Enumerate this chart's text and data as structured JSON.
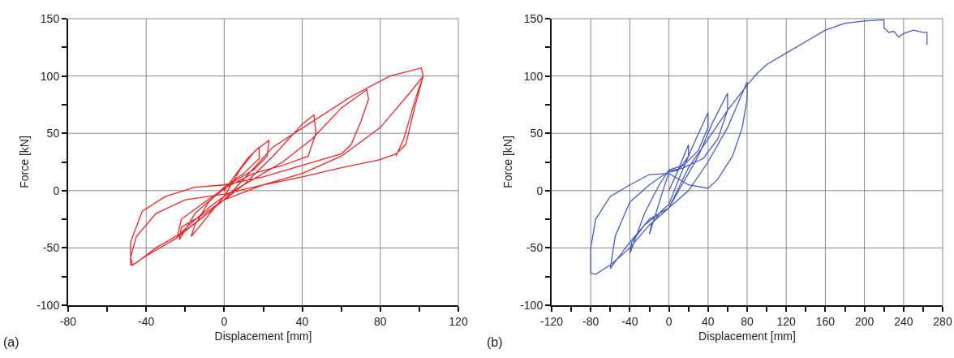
{
  "chart_data": [
    {
      "type": "line",
      "xlabel": "Displacement [mm]",
      "ylabel": "Force [kN]",
      "annotations": [
        "(a)"
      ],
      "grid": true,
      "marker": "none",
      "line_style": "solid",
      "xlim": [
        -80,
        120
      ],
      "xticks": [
        -80,
        {
          "value": -60,
          "label": null
        },
        -40,
        {
          "value": -20,
          "label": null
        },
        0,
        {
          "value": 20,
          "label": null
        },
        40,
        {
          "value": 60,
          "label": null
        },
        80,
        {
          "value": 100,
          "label": null
        },
        120
      ],
      "ylim": [
        -100,
        150
      ],
      "yticks": [
        -100,
        {
          "value": -75,
          "label": null
        },
        -50,
        {
          "value": -25,
          "label": null
        },
        0,
        {
          "value": 25,
          "label": null
        },
        50,
        {
          "value": 75,
          "label": null
        },
        100,
        {
          "value": 125,
          "label": null
        },
        150
      ],
      "series": [
        {
          "color": "#e8262b",
          "x": [
            0,
            5,
            12,
            18,
            18,
            10,
            0,
            -8,
            -15,
            -17,
            -12,
            -5,
            0,
            8,
            16,
            23,
            22,
            15,
            5,
            -5,
            -15,
            -23,
            -22,
            -12,
            0,
            10,
            25,
            40,
            46,
            47,
            43,
            30,
            15,
            0,
            -10,
            -22,
            -24,
            -18,
            -8,
            0,
            15,
            30,
            45,
            60,
            73,
            74,
            70,
            65,
            60,
            40,
            20,
            0,
            -15,
            -30,
            -42,
            -48,
            -48,
            -45,
            -35,
            -20,
            -5,
            0,
            10,
            25,
            45,
            65,
            85,
            101,
            102,
            98,
            93,
            88,
            80,
            60,
            40,
            20,
            0,
            -20,
            -35,
            -45,
            -48,
            -47,
            -40,
            -25,
            -10,
            0,
            20,
            40,
            60,
            80,
            95,
            102,
            98,
            92,
            88
          ],
          "values": [
            0,
            12,
            28,
            38,
            28,
            15,
            3,
            -10,
            -30,
            -40,
            -30,
            -15,
            -5,
            18,
            35,
            44,
            30,
            18,
            8,
            -5,
            -20,
            -43,
            -32,
            -22,
            -8,
            5,
            30,
            58,
            66,
            50,
            30,
            22,
            15,
            2,
            -10,
            -25,
            -40,
            -30,
            -15,
            -5,
            10,
            25,
            45,
            72,
            88,
            80,
            60,
            40,
            32,
            22,
            12,
            5,
            3,
            -5,
            -18,
            -45,
            -65,
            -63,
            -50,
            -35,
            -15,
            -8,
            10,
            38,
            60,
            82,
            100,
            107,
            100,
            75,
            40,
            32,
            27,
            20,
            12,
            5,
            -3,
            -8,
            -20,
            -40,
            -58,
            -65,
            -57,
            -42,
            -22,
            -8,
            5,
            15,
            30,
            55,
            85,
            100,
            80,
            45,
            30
          ]
        }
      ]
    },
    {
      "type": "line",
      "xlabel": "Displacement [mm]",
      "ylabel": "Force [kN]",
      "annotations": [
        "(b)"
      ],
      "grid": true,
      "marker": "none",
      "line_style": "solid",
      "xlim": [
        -120,
        280
      ],
      "xticks": [
        -120,
        {
          "value": -100,
          "label": null
        },
        -80,
        {
          "value": -60,
          "label": null
        },
        -40,
        {
          "value": -20,
          "label": null
        },
        0,
        {
          "value": 20,
          "label": null
        },
        40,
        {
          "value": 60,
          "label": null
        },
        80,
        {
          "value": 100,
          "label": null
        },
        120,
        {
          "value": 140,
          "label": null
        },
        160,
        {
          "value": 180,
          "label": null
        },
        200,
        {
          "value": 220,
          "label": null
        },
        240,
        {
          "value": 260,
          "label": null
        },
        280
      ],
      "ylim": [
        -100,
        150
      ],
      "yticks": [
        -100,
        {
          "value": -75,
          "label": null
        },
        -50,
        {
          "value": -25,
          "label": null
        },
        0,
        {
          "value": 25,
          "label": null
        },
        50,
        {
          "value": 75,
          "label": null
        },
        100,
        {
          "value": 125,
          "label": null
        },
        150
      ],
      "series": [
        {
          "color": "#4a5cbf",
          "x": [
            0,
            8,
            20,
            20,
            10,
            0,
            -8,
            -20,
            -18,
            -8,
            0,
            10,
            25,
            40,
            40,
            30,
            15,
            0,
            -10,
            -25,
            -40,
            -38,
            -25,
            -10,
            0,
            10,
            30,
            45,
            60,
            60,
            50,
            35,
            15,
            0,
            -20,
            -40,
            -55,
            -60,
            -55,
            -40,
            -20,
            0,
            20,
            40,
            60,
            80,
            80,
            75,
            65,
            50,
            40,
            20,
            0,
            -20,
            -40,
            -60,
            -75,
            -80,
            -80,
            -75,
            -60,
            -40,
            -20,
            0,
            20,
            40,
            60,
            80,
            90,
            100,
            120,
            140,
            160,
            180,
            200,
            220,
            220,
            225,
            230,
            235,
            240,
            250,
            260,
            264,
            264
          ],
          "values": [
            0,
            15,
            40,
            30,
            18,
            16,
            -5,
            -38,
            -30,
            -18,
            -12,
            10,
            40,
            68,
            55,
            35,
            22,
            18,
            5,
            -20,
            -55,
            -45,
            -30,
            -20,
            -15,
            0,
            30,
            60,
            85,
            70,
            45,
            28,
            20,
            17,
            5,
            -10,
            -40,
            -68,
            -62,
            -45,
            -25,
            -15,
            0,
            25,
            55,
            95,
            80,
            55,
            30,
            10,
            2,
            5,
            15,
            14,
            5,
            -5,
            -25,
            -50,
            -72,
            -73,
            -65,
            -50,
            -30,
            -15,
            20,
            45,
            70,
            92,
            102,
            110,
            120,
            130,
            140,
            146,
            148,
            149,
            142,
            138,
            139,
            134,
            137,
            140,
            138,
            138,
            127
          ]
        }
      ]
    }
  ]
}
